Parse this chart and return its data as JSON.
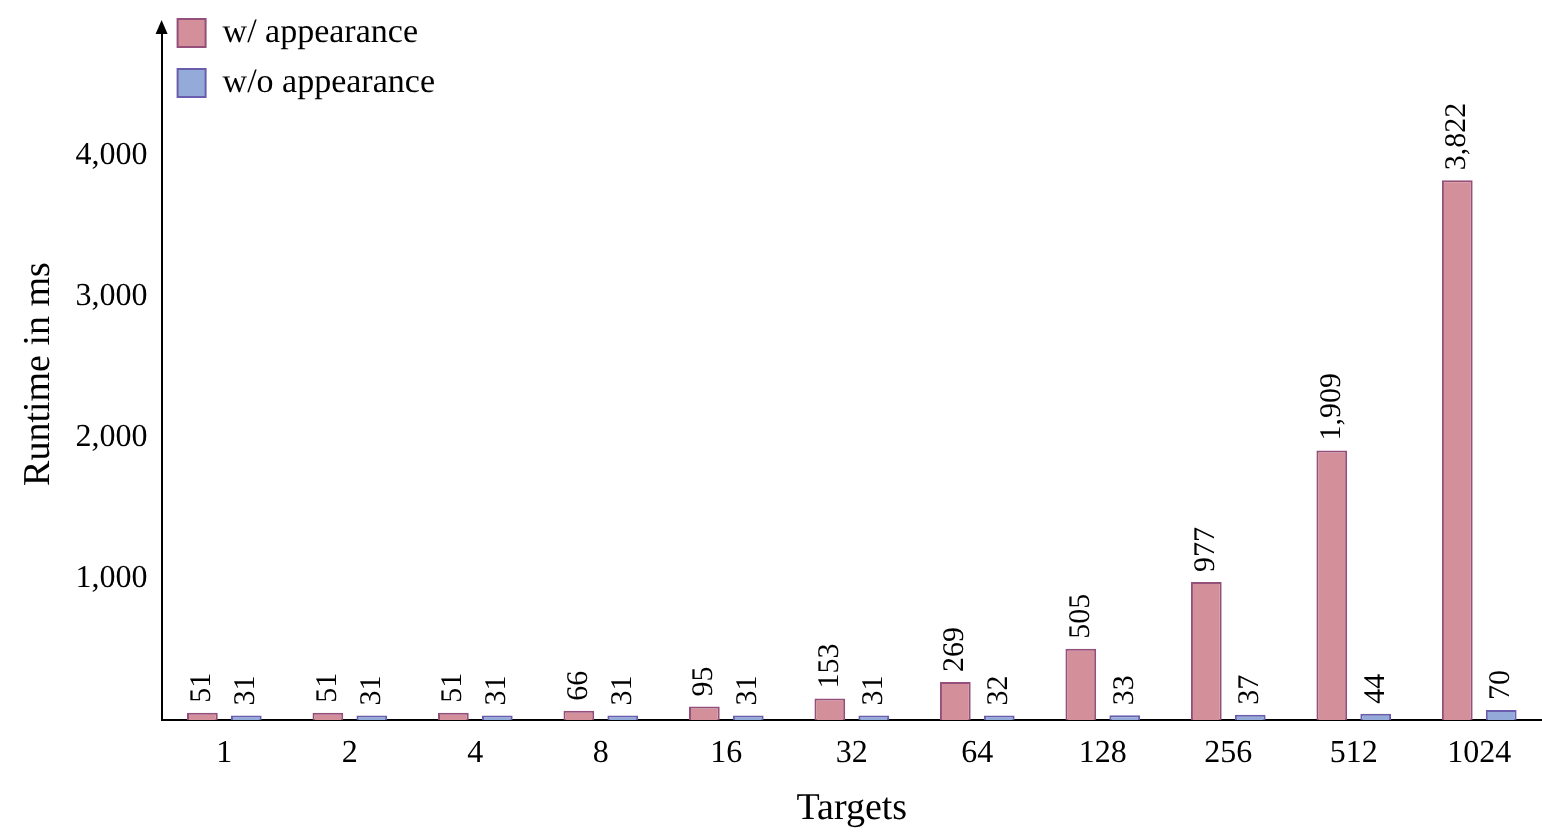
{
  "chart_data": {
    "type": "bar",
    "xlabel": "Targets",
    "ylabel": "Runtime in ms",
    "categories": [
      "1",
      "2",
      "4",
      "8",
      "16",
      "32",
      "64",
      "128",
      "256",
      "512",
      "1024"
    ],
    "series": [
      {
        "name": "w/ appearance",
        "color": "#d4909a",
        "values": [
          51,
          51,
          51,
          66,
          95,
          153,
          269,
          505,
          977,
          1909,
          3822
        ],
        "value_labels": [
          "51",
          "51",
          "51",
          "66",
          "95",
          "153",
          "269",
          "505",
          "977",
          "1,909",
          "3,822"
        ]
      },
      {
        "name": "w/o appearance",
        "color": "#94aad8",
        "values": [
          31,
          31,
          31,
          31,
          31,
          31,
          32,
          33,
          37,
          44,
          70
        ],
        "value_labels": [
          "31",
          "31",
          "31",
          "31",
          "31",
          "31",
          "32",
          "33",
          "37",
          "44",
          "70"
        ]
      }
    ],
    "ylim": [
      0,
      4900
    ],
    "yticks": [
      {
        "value": 1000,
        "label": "1,000"
      },
      {
        "value": 2000,
        "label": "2,000"
      },
      {
        "value": 3000,
        "label": "3,000"
      },
      {
        "value": 4000,
        "label": "4,000"
      }
    ],
    "grid": false,
    "legend": "top left"
  }
}
